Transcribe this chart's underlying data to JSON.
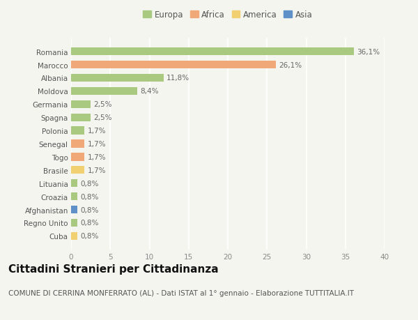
{
  "countries": [
    "Romania",
    "Marocco",
    "Albania",
    "Moldova",
    "Germania",
    "Spagna",
    "Polonia",
    "Senegal",
    "Togo",
    "Brasile",
    "Lituania",
    "Croazia",
    "Afghanistan",
    "Regno Unito",
    "Cuba"
  ],
  "values": [
    36.1,
    26.1,
    11.8,
    8.4,
    2.5,
    2.5,
    1.7,
    1.7,
    1.7,
    1.7,
    0.8,
    0.8,
    0.8,
    0.8,
    0.8
  ],
  "labels": [
    "36,1%",
    "26,1%",
    "11,8%",
    "8,4%",
    "2,5%",
    "2,5%",
    "1,7%",
    "1,7%",
    "1,7%",
    "1,7%",
    "0,8%",
    "0,8%",
    "0,8%",
    "0,8%",
    "0,8%"
  ],
  "continents": [
    "Europa",
    "Africa",
    "Europa",
    "Europa",
    "Europa",
    "Europa",
    "Europa",
    "Africa",
    "Africa",
    "America",
    "Europa",
    "Europa",
    "Asia",
    "Europa",
    "America"
  ],
  "continent_colors": {
    "Europa": "#a8c97f",
    "Africa": "#f0a878",
    "America": "#f0d070",
    "Asia": "#6090c8"
  },
  "legend_order": [
    "Europa",
    "Africa",
    "America",
    "Asia"
  ],
  "xlim": [
    0,
    40
  ],
  "xticks": [
    0,
    5,
    10,
    15,
    20,
    25,
    30,
    35,
    40
  ],
  "title": "Cittadini Stranieri per Cittadinanza",
  "subtitle": "COMUNE DI CERRINA MONFERRATO (AL) - Dati ISTAT al 1° gennaio - Elaborazione TUTTITALIA.IT",
  "background_color": "#f5f5f0",
  "grid_color": "#ffffff",
  "bar_height": 0.6,
  "title_fontsize": 11,
  "subtitle_fontsize": 7.5,
  "label_fontsize": 7.5,
  "tick_fontsize": 7.5,
  "legend_fontsize": 8.5
}
